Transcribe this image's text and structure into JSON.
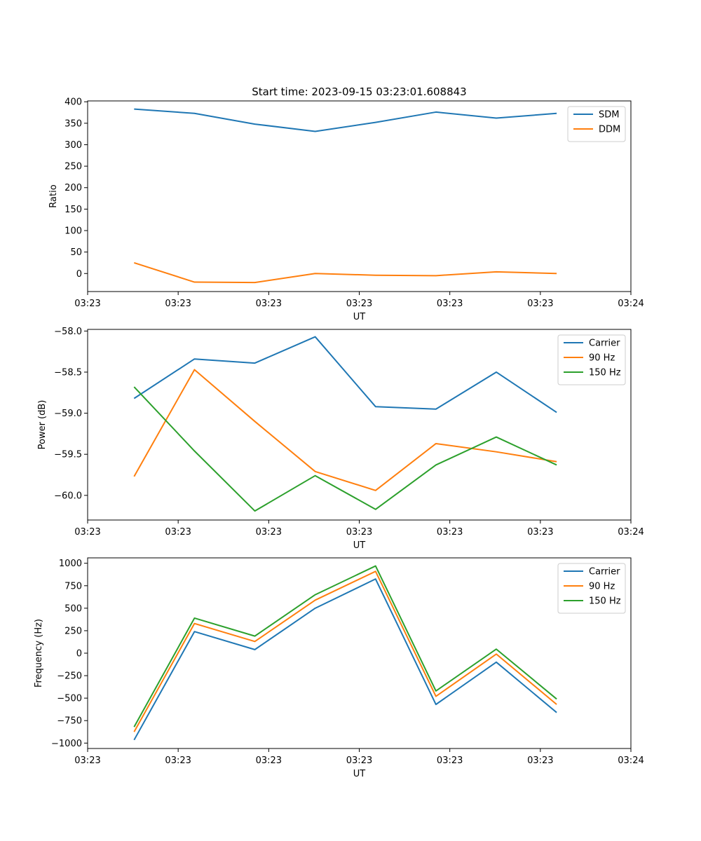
{
  "figure": {
    "title": "Start time: 2023-09-15 03:23:01.608843"
  },
  "colors": {
    "blue": "#1f77b4",
    "orange": "#ff7f0e",
    "green": "#2ca02c"
  },
  "chart_data": [
    {
      "type": "line",
      "title": "Start time: 2023-09-15 03:23:01.608843",
      "xlabel": "UT",
      "ylabel": "Ratio",
      "x": [
        1,
        2,
        3,
        4,
        5,
        6,
        7,
        8
      ],
      "xlim": [
        0.23,
        9.23
      ],
      "xticks": [
        0.23,
        1.73,
        3.23,
        4.73,
        6.23,
        7.73,
        9.23
      ],
      "xtick_labels": [
        "03:23",
        "03:23",
        "03:23",
        "03:23",
        "03:23",
        "03:23",
        "03:24"
      ],
      "ylim": [
        -42,
        402
      ],
      "yticks": [
        0,
        50,
        100,
        150,
        200,
        250,
        300,
        350,
        400
      ],
      "ytick_labels": [
        "0",
        "50",
        "100",
        "150",
        "200",
        "250",
        "300",
        "350",
        "400"
      ],
      "legend_position": "top-right",
      "series": [
        {
          "name": "SDM",
          "color": "#1f77b4",
          "values": [
            383,
            373,
            348,
            331,
            352,
            376,
            362,
            373
          ]
        },
        {
          "name": "DDM",
          "color": "#ff7f0e",
          "values": [
            25,
            -20,
            -21,
            0,
            -4,
            -5,
            4,
            0
          ]
        }
      ]
    },
    {
      "type": "line",
      "title": "",
      "xlabel": "UT",
      "ylabel": "Power (dB)",
      "x": [
        1,
        2,
        3,
        4,
        5,
        6,
        7,
        8
      ],
      "xlim": [
        0.23,
        9.23
      ],
      "xticks": [
        0.23,
        1.73,
        3.23,
        4.73,
        6.23,
        7.73,
        9.23
      ],
      "xtick_labels": [
        "03:23",
        "03:23",
        "03:23",
        "03:23",
        "03:23",
        "03:23",
        "03:24"
      ],
      "ylim": [
        -60.3,
        -57.98
      ],
      "yticks": [
        -60.0,
        -59.5,
        -59.0,
        -58.5,
        -58.0
      ],
      "ytick_labels": [
        "−60.0",
        "−59.5",
        "−59.0",
        "−58.5",
        "−58.0"
      ],
      "legend_position": "top-right",
      "series": [
        {
          "name": "Carrier",
          "color": "#1f77b4",
          "values": [
            -58.82,
            -58.34,
            -58.39,
            -58.07,
            -58.92,
            -58.95,
            -58.5,
            -58.99
          ]
        },
        {
          "name": "90 Hz",
          "color": "#ff7f0e",
          "values": [
            -59.77,
            -58.47,
            -59.1,
            -59.71,
            -59.94,
            -59.37,
            -59.47,
            -59.59
          ]
        },
        {
          "name": "150 Hz",
          "color": "#2ca02c",
          "values": [
            -58.68,
            -59.46,
            -60.19,
            -59.76,
            -60.17,
            -59.63,
            -59.29,
            -59.63
          ]
        }
      ]
    },
    {
      "type": "line",
      "title": "",
      "xlabel": "UT",
      "ylabel": "Frequency (Hz)",
      "x": [
        1,
        2,
        3,
        4,
        5,
        6,
        7,
        8
      ],
      "xlim": [
        0.23,
        9.23
      ],
      "xticks": [
        0.23,
        1.73,
        3.23,
        4.73,
        6.23,
        7.73,
        9.23
      ],
      "xtick_labels": [
        "03:23",
        "03:23",
        "03:23",
        "03:23",
        "03:23",
        "03:23",
        "03:24"
      ],
      "ylim": [
        -1060,
        1060
      ],
      "yticks": [
        -1000,
        -750,
        -500,
        -250,
        0,
        250,
        500,
        750,
        1000
      ],
      "ytick_labels": [
        "−1000",
        "−750",
        "−500",
        "−250",
        "0",
        "250",
        "500",
        "750",
        "1000"
      ],
      "legend_position": "top-right",
      "series": [
        {
          "name": "Carrier",
          "color": "#1f77b4",
          "values": [
            -965,
            240,
            40,
            500,
            825,
            -570,
            -100,
            -660
          ]
        },
        {
          "name": "90 Hz",
          "color": "#ff7f0e",
          "values": [
            -875,
            330,
            130,
            590,
            910,
            -480,
            -10,
            -570
          ]
        },
        {
          "name": "150 Hz",
          "color": "#2ca02c",
          "values": [
            -820,
            390,
            190,
            650,
            970,
            -420,
            45,
            -510
          ]
        }
      ]
    }
  ]
}
